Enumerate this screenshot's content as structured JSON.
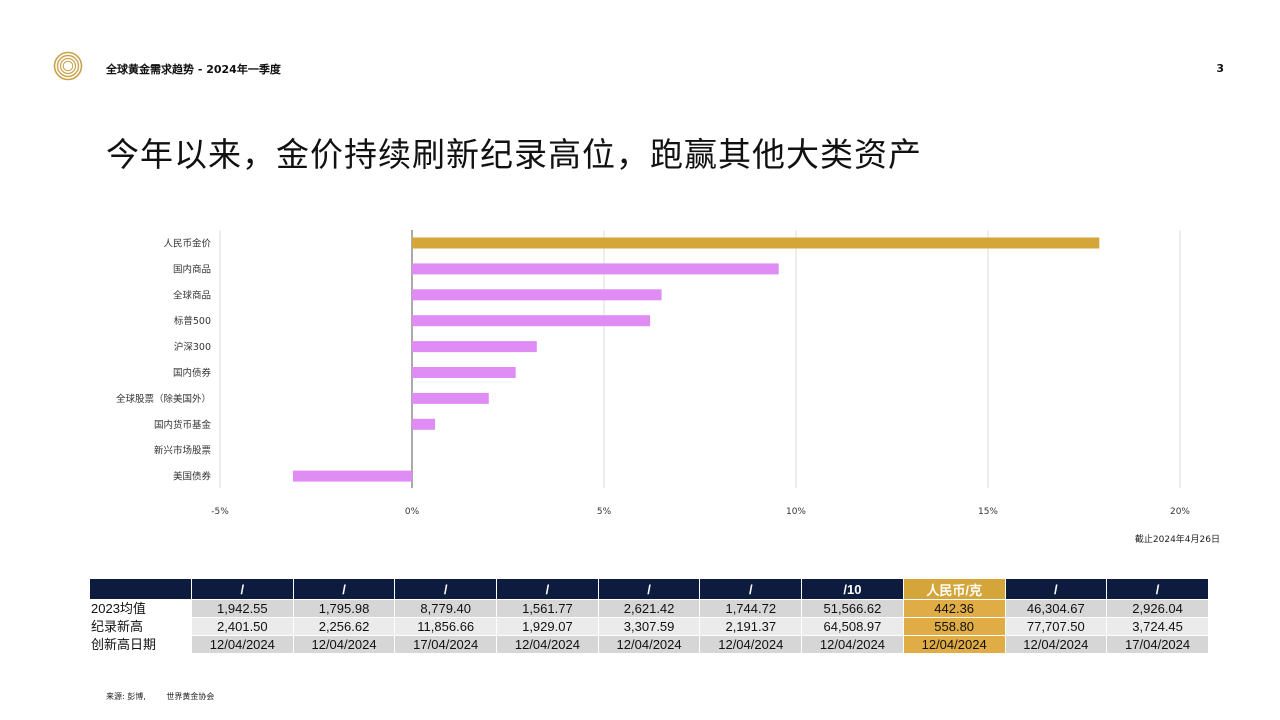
{
  "header": {
    "title": "全球黄金需求趋势 - 2024年一季度",
    "page_number": "3"
  },
  "main_title": "今年以来，金价持续刷新纪录高位，跑赢其他大类资产",
  "chart_data": {
    "type": "bar",
    "orientation": "horizontal",
    "categories": [
      "人民币金价",
      "国内商品",
      "全球商品",
      "标普500",
      "沪深300",
      "国内债券",
      "全球股票（除美国外）",
      "国内货币基金",
      "新兴市场股票",
      "美国债券"
    ],
    "values": [
      17.9,
      9.55,
      6.5,
      6.2,
      3.25,
      2.7,
      2.0,
      0.6,
      0.0,
      -3.1
    ],
    "value_unit": "%",
    "xlim": [
      -5,
      20
    ],
    "xticks": [
      "-5%",
      "0%",
      "5%",
      "10%",
      "15%",
      "20%"
    ],
    "xtick_values": [
      -5,
      0,
      5,
      10,
      15,
      20
    ],
    "grid": true,
    "colors": {
      "highlight": "#d4a63a",
      "other": "#df8df5"
    }
  },
  "note": "截止2024年4月26日",
  "table": {
    "headers": [
      "",
      "/",
      "/",
      "/",
      "/",
      "/",
      "/",
      "/10",
      "人民币/克",
      "/",
      "/"
    ],
    "highlight_col": 8,
    "rows": [
      {
        "label": "2023均值",
        "cells": [
          "1,942.55",
          "1,795.98",
          "8,779.40",
          "1,561.77",
          "2,621.42",
          "1,744.72",
          "51,566.62",
          "442.36",
          "46,304.67",
          "2,926.04"
        ]
      },
      {
        "label": "纪录新高",
        "cells": [
          "2,401.50",
          "2,256.62",
          "11,856.66",
          "1,929.07",
          "3,307.59",
          "2,191.37",
          "64,508.97",
          "558.80",
          "77,707.50",
          "3,724.45"
        ]
      },
      {
        "label": "创新高日期",
        "cells": [
          "12/04/2024",
          "12/04/2024",
          "17/04/2024",
          "12/04/2024",
          "12/04/2024",
          "12/04/2024",
          "12/04/2024",
          "12/04/2024",
          "12/04/2024",
          "17/04/2024"
        ]
      }
    ]
  },
  "source": {
    "label": "来源: 彭博,",
    "org": "世界黄金协会"
  }
}
